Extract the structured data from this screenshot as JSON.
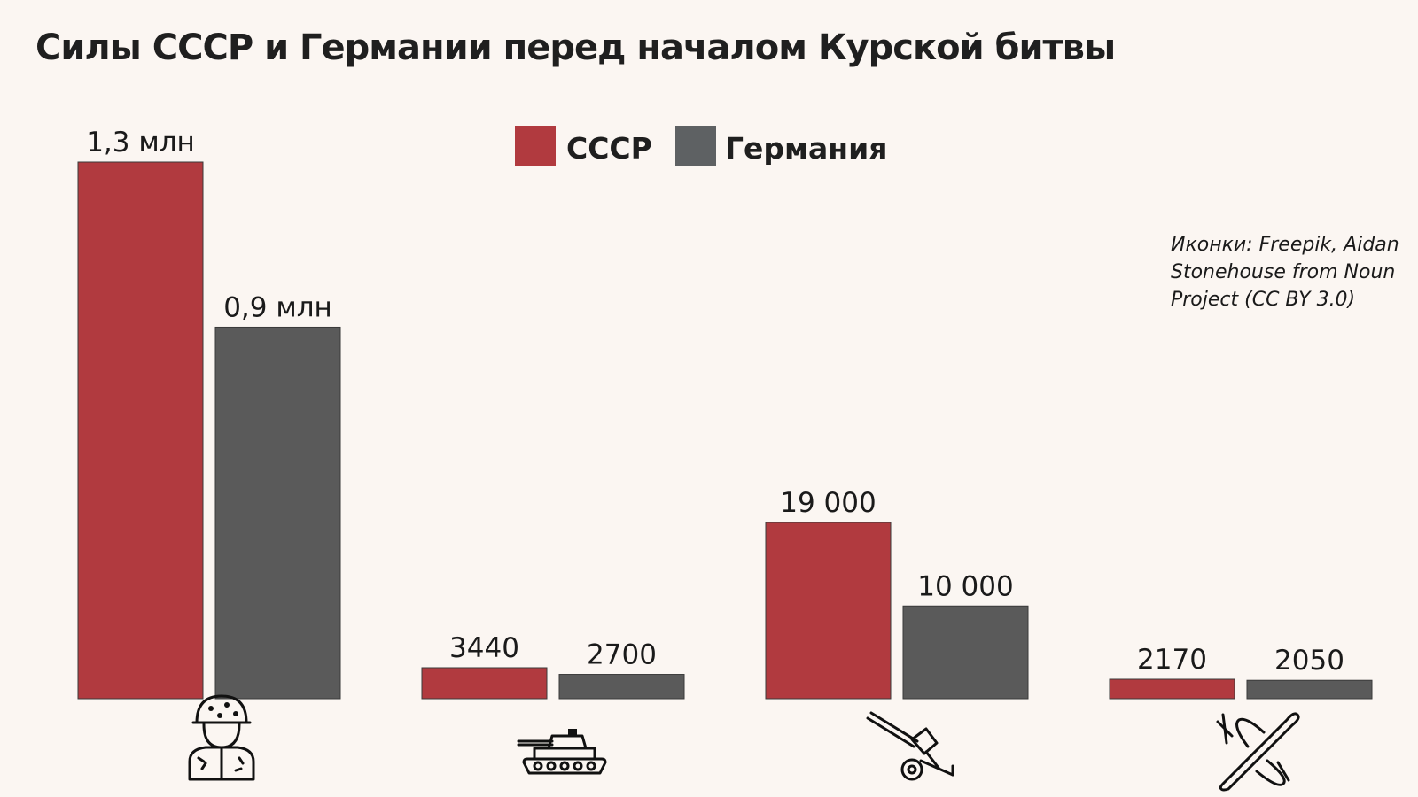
{
  "colors": {
    "background": "#fbf6f2",
    "ussr": "#b13a3f",
    "germany": "#5a5a5a",
    "germany_legend": "#5e6163"
  },
  "credit": [
    "Иконки: Freepik, Aidan",
    "Stonehouse from Noun",
    "Project (CC BY 3.0)"
  ],
  "categories": [
    {
      "icon": "soldier-icon"
    },
    {
      "icon": "tank-icon"
    },
    {
      "icon": "artillery-gun-icon"
    },
    {
      "icon": "fighter-plane-icon"
    }
  ],
  "chart_data": {
    "type": "bar",
    "title": "Силы СССР и Германии перед началом Курской битвы",
    "xlabel": "",
    "ylabel": "",
    "grid": false,
    "legend_position": "top-center",
    "categories": [
      "Солдаты",
      "Танки",
      "Орудия",
      "Самолёты"
    ],
    "series": [
      {
        "name": "СССР",
        "values": [
          1300000,
          3440,
          19000,
          2170
        ],
        "labels": [
          "1,3 млн",
          "3440",
          "19 000",
          "2170"
        ]
      },
      {
        "name": "Германия",
        "values": [
          900000,
          2700,
          10000,
          2050
        ],
        "labels": [
          "0,9 млн",
          "2700",
          "10 000",
          "2050"
        ]
      }
    ]
  }
}
